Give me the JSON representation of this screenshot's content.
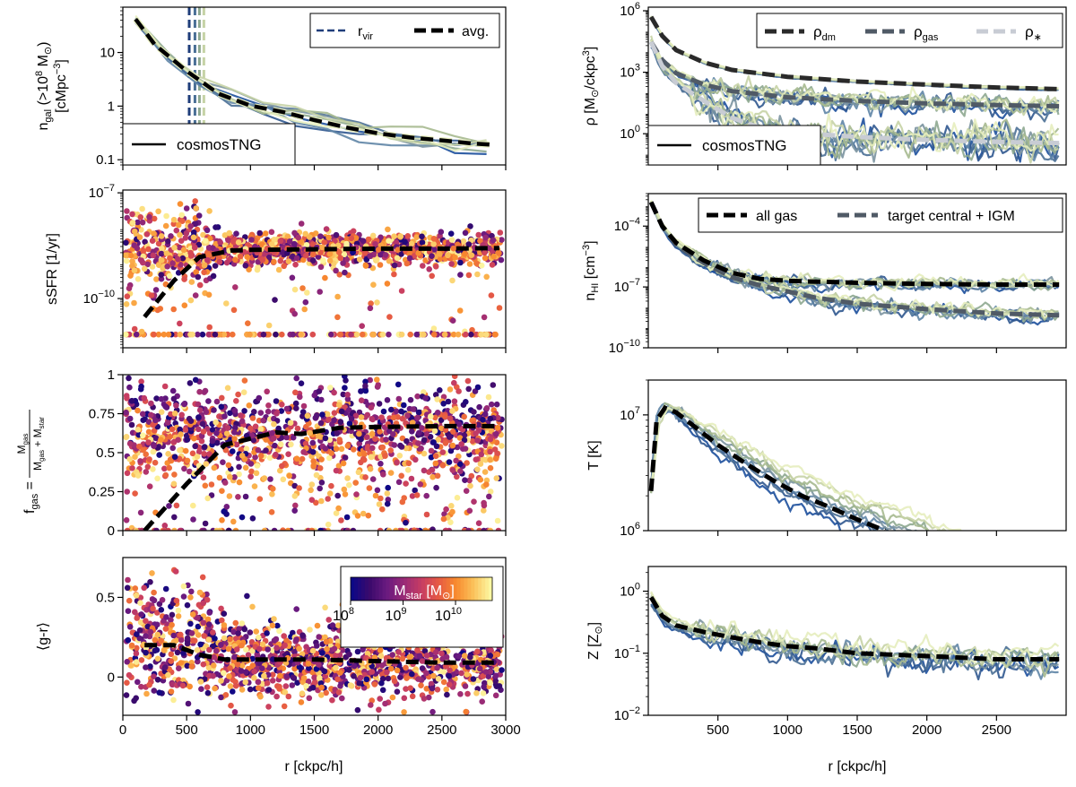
{
  "colors": {
    "cosmos_lines": [
      "#1c4f9c",
      "#30588f",
      "#4a6f95",
      "#5f85a6",
      "#7b93a0",
      "#8ea890",
      "#a6b98f",
      "#c6d3a6",
      "#e6edbe"
    ],
    "avg": "#000000",
    "rvir": "#1f3d7a",
    "rho_dm": "#2a2a2a",
    "rho_gas": "#505a66",
    "rho_star": "#c8ccd4",
    "gas_target": "#505a66",
    "colormap": [
      "#0d0887",
      "#3b0a6b",
      "#6a1a80",
      "#9a2b76",
      "#c73d63",
      "#e65a44",
      "#f88a2e",
      "#fbc15a",
      "#fcf7a2"
    ]
  },
  "chart_data": [
    {
      "id": "ngal",
      "type": "line",
      "xlabel": "",
      "xlim": [
        0,
        3000
      ],
      "yscale": "log",
      "ylim": [
        0.08,
        70
      ],
      "ylabel_main": "n",
      "ylabel_sub": "gal",
      "ylabel_rest": " (>10",
      "ylabel_exp": "8",
      "ylabel_unit": " M",
      "ylabel_sun": "⊙",
      "ylabel_close": ")",
      "ylabel_line2": "[cMpc",
      "ylabel_line2_exp": "−3",
      "ylabel_line2_close": "]",
      "yticks": [
        {
          "value": 0.1,
          "label": "0.1"
        },
        {
          "value": 1,
          "label": "1"
        },
        {
          "value": 10,
          "label": "10"
        }
      ],
      "rvir_values": [
        520,
        565,
        600,
        635
      ],
      "avg": {
        "x": [
          100,
          250,
          500,
          750,
          1000,
          1250,
          1500,
          1750,
          2000,
          2250,
          2500,
          2750,
          2900
        ],
        "y": [
          42,
          14,
          4.5,
          1.7,
          1.02,
          0.78,
          0.55,
          0.4,
          0.31,
          0.26,
          0.23,
          0.2,
          0.19
        ]
      },
      "legend": {
        "rvir": "r",
        "rvir_sub": "vir",
        "avg": "avg."
      },
      "legend2": {
        "label": "cosmosTNG"
      }
    },
    {
      "id": "ssfr",
      "type": "scatter",
      "xlim": [
        0,
        3000
      ],
      "yscale": "log",
      "ylim": [
        4e-12,
        1.2e-07
      ],
      "ylabel": "sSFR [1/yr]",
      "yticks": [
        {
          "value": 1e-10,
          "label": "10",
          "exp": "−10"
        },
        {
          "value": 1e-07,
          "label": "10",
          "exp": "−7"
        }
      ],
      "floor": 9.5e-12,
      "avg": {
        "x": [
          170,
          400,
          600,
          850,
          1000,
          1500,
          2000,
          2500,
          2950
        ],
        "y": [
          3e-11,
          3.2e-10,
          1.5e-09,
          2.3e-09,
          2.4e-09,
          2.5e-09,
          2.6e-09,
          2.6e-09,
          2.7e-09
        ]
      }
    },
    {
      "id": "fgas",
      "type": "scatter",
      "xlim": [
        0,
        3000
      ],
      "yscale": "linear",
      "ylim": [
        0,
        1
      ],
      "ylabel_f": "f",
      "ylabel_f_sub": "gas",
      "ylabel_eq": " =",
      "frac_num": "M",
      "frac_num_sub": "gas",
      "frac_den": "M",
      "frac_den_sub1": "gas",
      "frac_den_plus": " + M",
      "frac_den_sub2": "star",
      "yticks": [
        {
          "value": 0,
          "label": "0"
        },
        {
          "value": 0.25,
          "label": "0.25"
        },
        {
          "value": 0.5,
          "label": "0.5"
        },
        {
          "value": 0.75,
          "label": "0.75"
        },
        {
          "value": 1,
          "label": "1"
        }
      ],
      "avg": {
        "x": [
          170,
          500,
          800,
          1000,
          1200,
          1400,
          1700,
          2000,
          2500,
          2950
        ],
        "y": [
          0.0,
          0.3,
          0.55,
          0.59,
          0.63,
          0.62,
          0.66,
          0.665,
          0.67,
          0.67
        ]
      }
    },
    {
      "id": "gr",
      "type": "scatter",
      "xlim": [
        0,
        3000
      ],
      "yscale": "linear",
      "ylim": [
        -0.24,
        0.75
      ],
      "ylabel": "⟨g-r⟩",
      "xlabel": "r [ckpc/h]",
      "yticks": [
        {
          "value": 0,
          "label": "0"
        },
        {
          "value": 0.5,
          "label": "0.5"
        }
      ],
      "xticks": [
        {
          "value": 0,
          "label": "0"
        },
        {
          "value": 500,
          "label": "500"
        },
        {
          "value": 1000,
          "label": "1000"
        },
        {
          "value": 1500,
          "label": "1500"
        },
        {
          "value": 2000,
          "label": "2000"
        },
        {
          "value": 2500,
          "label": "2500"
        },
        {
          "value": 3000,
          "label": "3000"
        }
      ],
      "avg": {
        "x": [
          170,
          400,
          600,
          800,
          1000,
          1500,
          2000,
          2500,
          2950
        ],
        "y": [
          0.2,
          0.2,
          0.14,
          0.11,
          0.11,
          0.11,
          0.1,
          0.09,
          0.09
        ]
      },
      "colorbar": {
        "label": "M",
        "label_sub": "star",
        "label_rest": " [M",
        "label_sun": "⊙",
        "label_close": "]",
        "ticks": [
          {
            "value": 8,
            "label": "10",
            "exp": "8"
          },
          {
            "value": 9,
            "label": "10",
            "exp": "9"
          },
          {
            "value": 10,
            "label": "10",
            "exp": "10"
          }
        ],
        "range": [
          8,
          10.7
        ]
      }
    },
    {
      "id": "rho",
      "type": "line",
      "xlim": [
        0,
        3000
      ],
      "yscale": "log",
      "ylim": [
        0.03,
        1500000.0
      ],
      "ylabel": "ρ [M",
      "ylabel_sun": "⊙",
      "ylabel_rest": "/ckpc",
      "ylabel_exp": "3",
      "ylabel_close": "]",
      "yticks": [
        {
          "value": 1,
          "label": "10",
          "exp": "0"
        },
        {
          "value": 1000,
          "label": "10",
          "exp": "3"
        },
        {
          "value": 1000000,
          "label": "10",
          "exp": "6"
        }
      ],
      "legend": [
        {
          "label": "ρ",
          "sub": "dm"
        },
        {
          "label": "ρ",
          "sub": "gas"
        },
        {
          "label": "ρ",
          "sub": "∗"
        }
      ],
      "legend2": {
        "label": "cosmosTNG"
      },
      "avg_dm": {
        "x": [
          20,
          100,
          200,
          400,
          600,
          1000,
          1500,
          2000,
          2500,
          2950
        ],
        "y": [
          500000,
          60000,
          12000,
          3000,
          1300,
          600,
          350,
          250,
          180,
          150
        ]
      },
      "avg_gas": {
        "x": [
          20,
          100,
          200,
          400,
          600,
          1000,
          1500,
          2000,
          2500,
          2950
        ],
        "y": [
          30000,
          4000,
          900,
          250,
          120,
          60,
          40,
          30,
          25,
          22
        ]
      },
      "avg_star": {
        "x": [
          20,
          100,
          200,
          400,
          600,
          800,
          1000,
          1500,
          2000,
          2500,
          2950
        ],
        "y": [
          30000,
          2000,
          300,
          40,
          6,
          2,
          1.2,
          0.7,
          0.5,
          0.4,
          0.35
        ]
      }
    },
    {
      "id": "nhi",
      "type": "line",
      "xlim": [
        0,
        3000
      ],
      "yscale": "log",
      "ylim": [
        1e-10,
        0.004
      ],
      "ylabel_main": "n",
      "ylabel_sub": "HI",
      "ylabel_rest": " [cm",
      "ylabel_exp": "−3",
      "ylabel_close": "]",
      "yticks": [
        {
          "value": 1e-10,
          "label": "10",
          "exp": "−10"
        },
        {
          "value": 1e-07,
          "label": "10",
          "exp": "−7"
        },
        {
          "value": 0.0001,
          "label": "10",
          "exp": "−4"
        }
      ],
      "legend": {
        "all": "all gas",
        "target": "target central + IGM"
      },
      "avg_all": {
        "x": [
          20,
          100,
          200,
          400,
          600,
          800,
          1000,
          1500,
          2000,
          2500,
          2950
        ],
        "y": [
          0.0015,
          0.0001,
          1.5e-05,
          2e-06,
          5e-07,
          2.5e-07,
          2e-07,
          1.6e-07,
          1.4e-07,
          1.3e-07,
          1.3e-07
        ]
      },
      "avg_target": {
        "x": [
          20,
          100,
          200,
          400,
          600,
          800,
          1000,
          1200,
          1500,
          2000,
          2500,
          2950
        ],
        "y": [
          0.0015,
          0.0001,
          1.2e-05,
          1.5e-06,
          3e-07,
          1.2e-07,
          6e-08,
          3e-08,
          1.5e-08,
          8e-09,
          5e-09,
          4e-09
        ]
      }
    },
    {
      "id": "temp",
      "type": "line",
      "xlim": [
        0,
        3000
      ],
      "yscale": "log",
      "ylim": [
        1000000,
        20000000
      ],
      "ylabel": "T [K]",
      "yticks": [
        {
          "value": 1000000,
          "label": "10",
          "exp": "6"
        },
        {
          "value": 10000000,
          "label": "10",
          "exp": "7"
        }
      ],
      "avg": {
        "x": [
          20,
          60,
          120,
          200,
          300,
          500,
          700,
          900,
          1100,
          1300,
          1500,
          1700
        ],
        "y": [
          2200000,
          9000000,
          11500000,
          10500000,
          8500000,
          5500000,
          3800000,
          2700000,
          2000000,
          1600000,
          1250000,
          1000000
        ]
      }
    },
    {
      "id": "metal",
      "type": "line",
      "xlim": [
        0,
        3000
      ],
      "yscale": "log",
      "ylim": [
        0.01,
        2.5
      ],
      "ylabel": "Z [Z",
      "ylabel_sun": "⊙",
      "ylabel_close": "]",
      "xlabel": "r [ckpc/h]",
      "yticks": [
        {
          "value": 0.01,
          "label": "10",
          "exp": "−2"
        },
        {
          "value": 0.1,
          "label": "10",
          "exp": "−1"
        },
        {
          "value": 1,
          "label": "10",
          "exp": "0"
        }
      ],
      "xticks": [
        {
          "value": 500,
          "label": "500"
        },
        {
          "value": 1000,
          "label": "1000"
        },
        {
          "value": 1500,
          "label": "1500"
        },
        {
          "value": 2000,
          "label": "2000"
        },
        {
          "value": 2500,
          "label": "2500"
        }
      ],
      "avg": {
        "x": [
          20,
          100,
          200,
          400,
          600,
          800,
          1000,
          1200,
          1500,
          2000,
          2500,
          2950
        ],
        "y": [
          0.8,
          0.4,
          0.28,
          0.22,
          0.18,
          0.15,
          0.13,
          0.12,
          0.1,
          0.09,
          0.08,
          0.08
        ]
      }
    }
  ]
}
